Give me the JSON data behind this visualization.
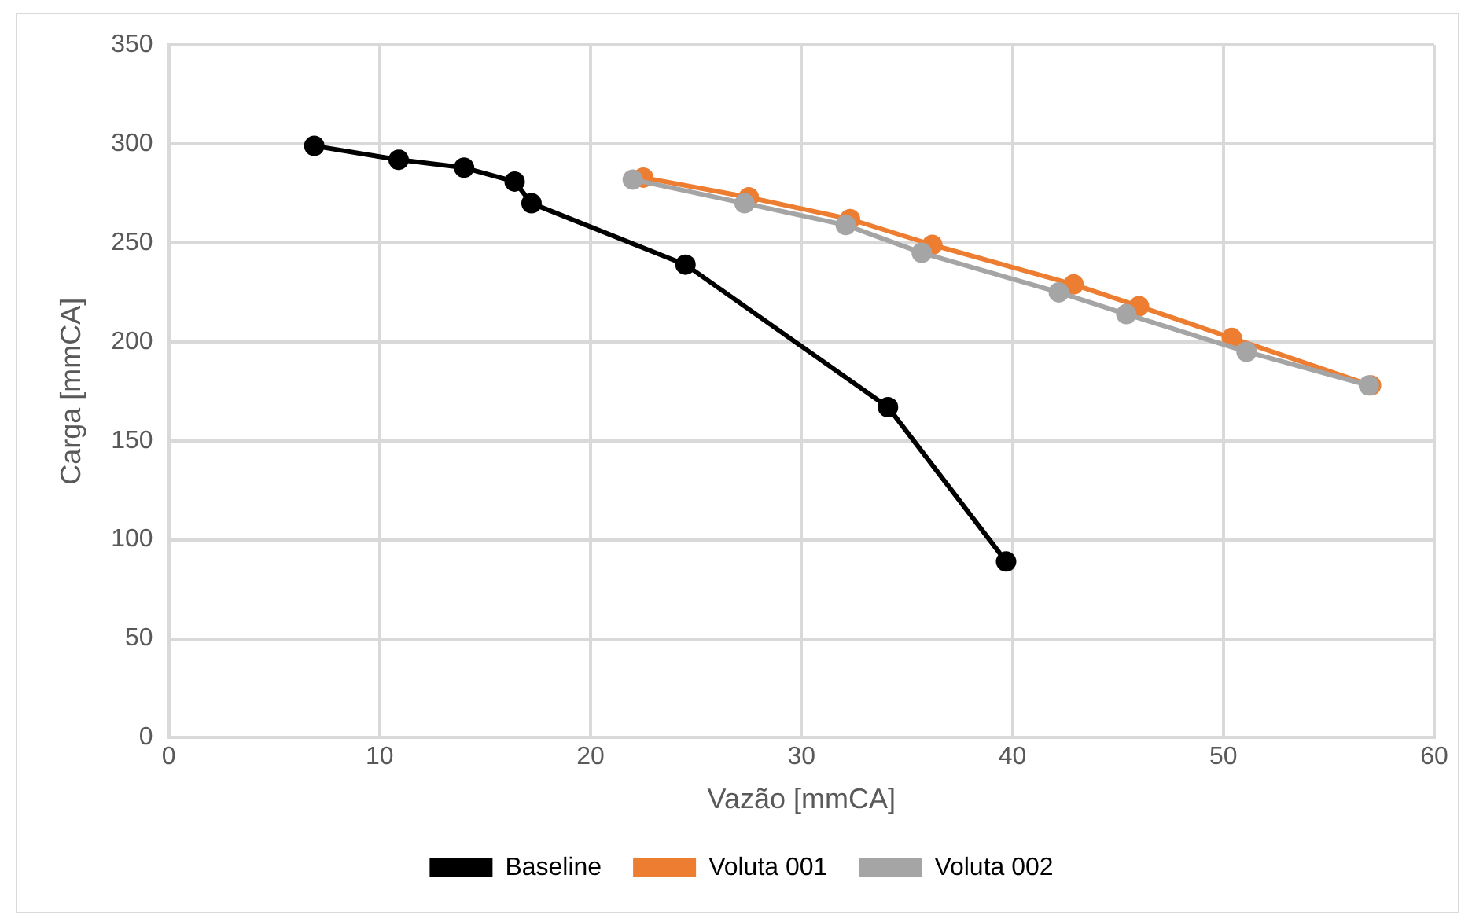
{
  "chart_data": {
    "type": "line",
    "xlabel": "Vazão [mmCA]",
    "ylabel": "Carga [mmCA]",
    "xlim": [
      0,
      60
    ],
    "xticks": [
      0,
      10,
      20,
      30,
      40,
      50,
      60
    ],
    "ylim": [
      0,
      350
    ],
    "yticks": [
      0,
      50,
      100,
      150,
      200,
      250,
      300,
      350
    ],
    "grid": true,
    "legend": "bottom",
    "marker": "circle",
    "line_style": "solid",
    "series": [
      {
        "name": "Baseline",
        "color": "#000000",
        "x": [
          6.9,
          10.9,
          14.0,
          16.4,
          17.2,
          24.5,
          34.1,
          39.7
        ],
        "values": [
          299,
          292,
          288,
          281,
          270,
          239,
          167,
          89
        ]
      },
      {
        "name": "Voluta 001",
        "color": "#ed7d31",
        "x": [
          22.5,
          27.5,
          32.3,
          36.2,
          42.9,
          46.0,
          50.4,
          57.0
        ],
        "values": [
          283,
          273,
          262,
          249,
          229,
          218,
          202,
          178
        ]
      },
      {
        "name": "Voluta 002",
        "color": "#a5a5a5",
        "x": [
          22.0,
          27.3,
          32.1,
          35.7,
          42.2,
          45.4,
          51.1,
          56.9
        ],
        "values": [
          282,
          270,
          259,
          245,
          225,
          214,
          195,
          178
        ]
      }
    ]
  }
}
